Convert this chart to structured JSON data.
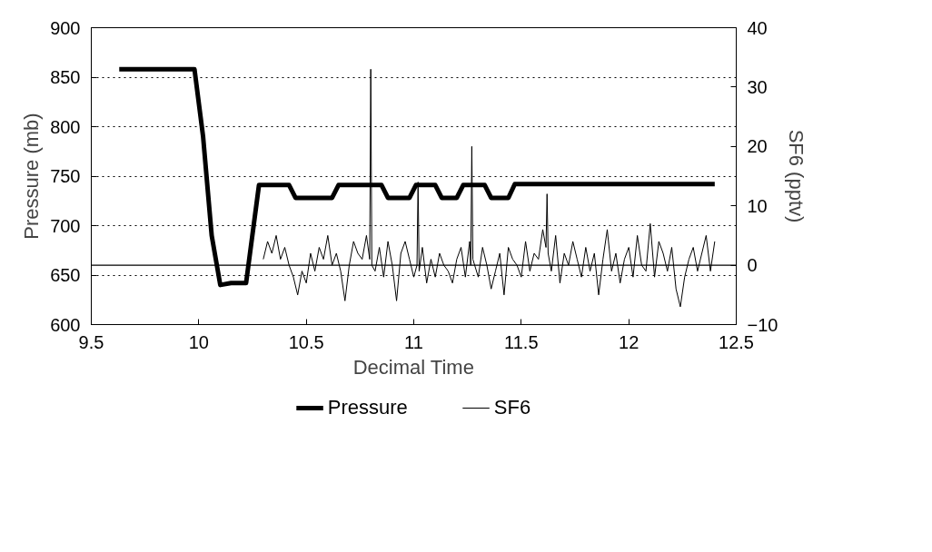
{
  "chart_data": {
    "type": "line",
    "xlabel": "Decimal Time",
    "ylabel": "Pressure (mb)",
    "y2label": "SF6 (pptv)",
    "xlim": [
      9.5,
      12.5
    ],
    "xticks": [
      9.5,
      10,
      10.5,
      11,
      11.5,
      12,
      12.5
    ],
    "ylim": [
      600,
      900
    ],
    "yticks": [
      600,
      650,
      700,
      750,
      800,
      850,
      900
    ],
    "y2lim": [
      -10,
      40
    ],
    "y2ticks": [
      -10,
      0,
      10,
      20,
      30,
      40
    ],
    "grid": "y",
    "legend": "bottom",
    "marker": "none",
    "ref_lines": [
      {
        "axis": "y2",
        "value": 0,
        "color": "#000000",
        "line_style": "solid"
      }
    ],
    "series": [
      {
        "name": "Pressure",
        "color": "#000000",
        "line_style": "solid",
        "x": [
          9.63,
          9.98,
          10.02,
          10.06,
          10.1,
          10.15,
          10.22,
          10.28,
          10.42,
          10.45,
          10.62,
          10.65,
          10.85,
          10.88,
          10.98,
          11.01,
          11.1,
          11.13,
          11.2,
          11.23,
          11.33,
          11.36,
          11.44,
          11.47,
          12.4
        ],
        "values": [
          858,
          858,
          790,
          690,
          640,
          642,
          642,
          741,
          741,
          728,
          728,
          741,
          741,
          728,
          728,
          741,
          741,
          728,
          728,
          741,
          741,
          728,
          728,
          742,
          742
        ]
      },
      {
        "name": "SF6",
        "color": "#000000",
        "axis": "y2",
        "line_style": "solid",
        "x": [
          10.3,
          10.32,
          10.34,
          10.36,
          10.38,
          10.4,
          10.42,
          10.44,
          10.46,
          10.48,
          10.5,
          10.52,
          10.54,
          10.56,
          10.58,
          10.6,
          10.62,
          10.64,
          10.66,
          10.68,
          10.7,
          10.72,
          10.74,
          10.76,
          10.78,
          10.795,
          10.8,
          10.805,
          10.82,
          10.84,
          10.86,
          10.88,
          10.9,
          10.92,
          10.94,
          10.96,
          10.98,
          11.0,
          11.015,
          11.02,
          11.025,
          11.04,
          11.06,
          11.08,
          11.1,
          11.12,
          11.14,
          11.16,
          11.18,
          11.2,
          11.22,
          11.24,
          11.26,
          11.265,
          11.27,
          11.275,
          11.3,
          11.32,
          11.34,
          11.36,
          11.38,
          11.4,
          11.42,
          11.44,
          11.46,
          11.48,
          11.5,
          11.52,
          11.54,
          11.56,
          11.58,
          11.6,
          11.615,
          11.62,
          11.625,
          11.64,
          11.66,
          11.68,
          11.7,
          11.72,
          11.74,
          11.76,
          11.78,
          11.8,
          11.82,
          11.84,
          11.86,
          11.88,
          11.9,
          11.92,
          11.94,
          11.96,
          11.98,
          12.0,
          12.02,
          12.04,
          12.06,
          12.08,
          12.1,
          12.12,
          12.14,
          12.16,
          12.18,
          12.2,
          12.22,
          12.24,
          12.26,
          12.28,
          12.3,
          12.32,
          12.34,
          12.36,
          12.38,
          12.4
        ],
        "values": [
          1,
          4,
          2,
          5,
          1,
          3,
          0,
          -2,
          -5,
          -1,
          -3,
          2,
          -1,
          3,
          1,
          5,
          0,
          2,
          -1,
          -6,
          0,
          4,
          2,
          1,
          5,
          1,
          33,
          0,
          -1,
          3,
          -2,
          4,
          0,
          -6,
          2,
          4,
          1,
          -2,
          0,
          14,
          -1,
          3,
          -3,
          1,
          -2,
          2,
          0,
          -1,
          -3,
          1,
          3,
          -2,
          4,
          0,
          20,
          1,
          -2,
          3,
          0,
          -4,
          -1,
          2,
          -5,
          3,
          1,
          0,
          -2,
          4,
          -1,
          2,
          1,
          6,
          3,
          12,
          2,
          -1,
          5,
          -3,
          2,
          0,
          4,
          1,
          -2,
          3,
          -1,
          2,
          -5,
          1,
          6,
          -1,
          2,
          -3,
          1,
          3,
          -2,
          5,
          0,
          -1,
          7,
          -2,
          4,
          2,
          -1,
          3,
          -4,
          -7,
          -2,
          1,
          3,
          -1,
          2,
          5,
          -1,
          4
        ]
      }
    ]
  }
}
